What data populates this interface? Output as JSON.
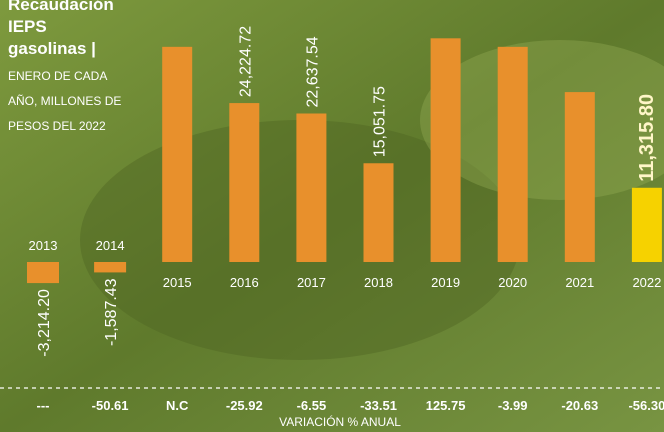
{
  "chart_data": {
    "type": "bar",
    "title": "Recaudación IEPS gasolinas |",
    "subtitle": [
      "ENERO DE CADA",
      "AÑO, MILLONES DE",
      "PESOS DEL 2022"
    ],
    "categories": [
      "2013",
      "2014",
      "2015",
      "2016",
      "2017",
      "2018",
      "2019",
      "2020",
      "2021",
      "2022"
    ],
    "values": [
      -3214.2,
      -1587.43,
      32800,
      24224.72,
      22637.54,
      15051.75,
      34100,
      32800,
      25900,
      11315.8
    ],
    "value_labels": [
      "-3,214.20",
      "-1,587.43",
      null,
      "24,224.72",
      "22,637.54",
      "15,051.75",
      null,
      null,
      null,
      "11,315.80"
    ],
    "colors": [
      "#e8902c",
      "#e8902c",
      "#e8902c",
      "#e8902c",
      "#e8902c",
      "#e8902c",
      "#e8902c",
      "#e8902c",
      "#e8902c",
      "#f6d200"
    ],
    "variation": [
      "---",
      "-50.61",
      "N.C",
      "-25.92",
      "-6.55",
      "-33.51",
      "125.75",
      "-3.99",
      "-20.63",
      "-56.30"
    ],
    "variation_title": "VARIACIÓN % ANUAL"
  }
}
